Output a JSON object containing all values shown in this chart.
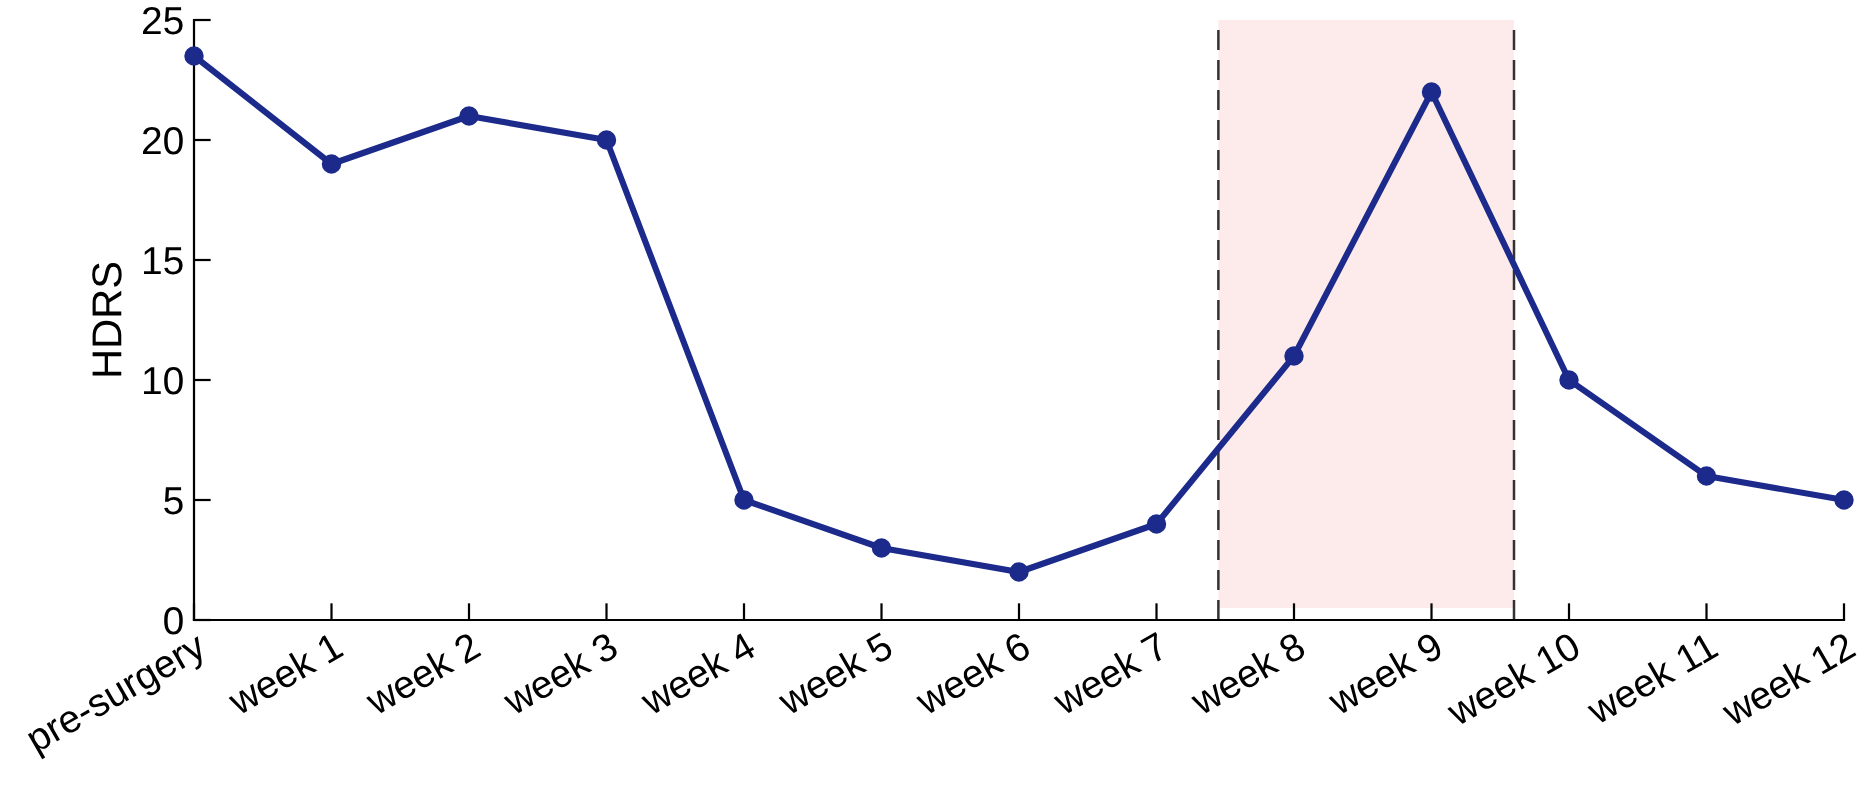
{
  "chart_data": {
    "type": "line",
    "ylabel": "HDRS",
    "categories": [
      "pre-surgery",
      "week 1",
      "week 2",
      "week 3",
      "week 4",
      "week 5",
      "week 6",
      "week 7",
      "week 8",
      "week 9",
      "week 10",
      "week 11",
      "week 12"
    ],
    "series": [
      {
        "color": "#1c2a8c",
        "values": [
          23.5,
          19,
          21,
          20,
          5,
          3,
          2,
          4,
          11,
          22,
          10,
          6,
          5
        ]
      }
    ],
    "ylim": [
      0,
      25
    ],
    "yticks": [
      0,
      5,
      10,
      15,
      20,
      25
    ],
    "marker": "circle",
    "line_style": "solid",
    "grid": false,
    "legend": false
  }
}
